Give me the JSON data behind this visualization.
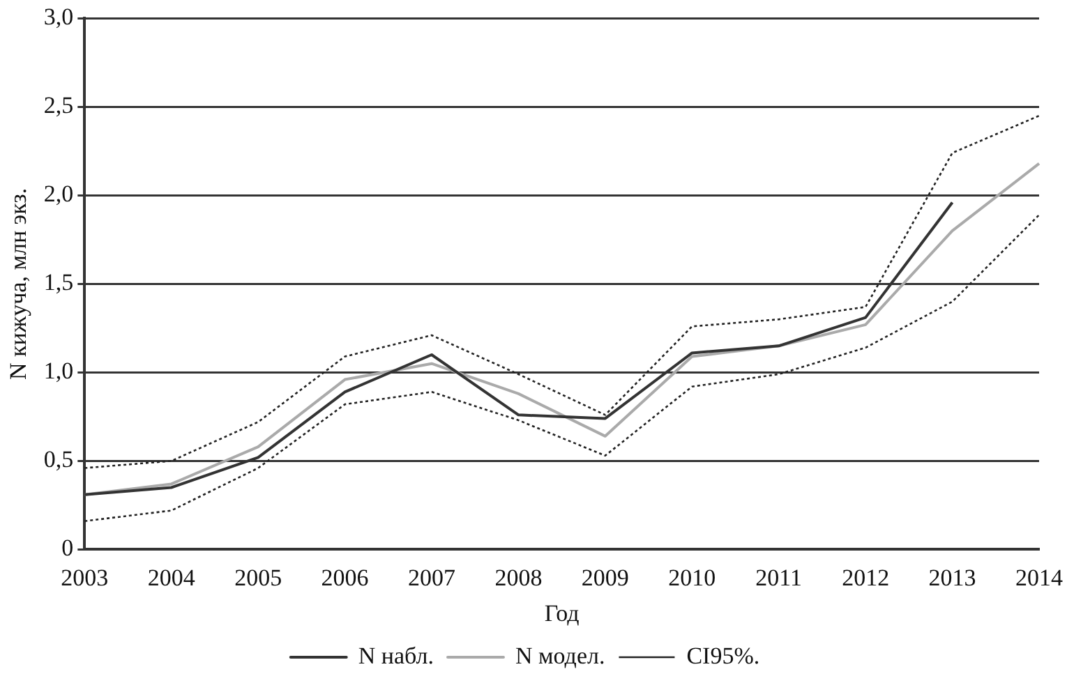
{
  "chart_data": {
    "type": "line",
    "xlabel": "Год",
    "ylabel": "N кижуча, млн экз.",
    "categories": [
      "2003",
      "2004",
      "2005",
      "2006",
      "2007",
      "2008",
      "2009",
      "2010",
      "2011",
      "2012",
      "2013",
      "2014"
    ],
    "series": [
      {
        "name": "N набл.",
        "color": "#333333",
        "line_style": "solid",
        "values": [
          0.31,
          0.35,
          0.52,
          0.89,
          1.1,
          0.76,
          0.74,
          1.11,
          1.15,
          1.31,
          1.96,
          null
        ]
      },
      {
        "name": "N модел.",
        "color": "#aaaaaa",
        "line_style": "solid",
        "values": [
          0.31,
          0.37,
          0.58,
          0.96,
          1.05,
          0.88,
          0.64,
          1.09,
          1.15,
          1.27,
          1.8,
          2.18
        ]
      },
      {
        "name": "CI95%.",
        "color": "#222222",
        "line_style": "dotted",
        "values": [
          0.46,
          0.5,
          0.72,
          1.09,
          1.21,
          0.99,
          0.76,
          1.26,
          1.3,
          1.37,
          2.24,
          2.45
        ]
      },
      {
        "color": "#222222",
        "line_style": "dotted",
        "values": [
          0.16,
          0.22,
          0.46,
          0.82,
          0.89,
          0.73,
          0.53,
          0.92,
          0.99,
          1.14,
          1.4,
          1.89
        ]
      }
    ],
    "ylim": [
      0,
      3
    ],
    "yticks": [
      0,
      {
        "value": 0.5,
        "label": "0,5"
      },
      {
        "value": 1,
        "label": "1,0"
      },
      {
        "value": 1.5,
        "label": "1,5"
      },
      {
        "value": 2,
        "label": "2,0"
      },
      {
        "value": 2.5,
        "label": "2,5"
      },
      {
        "value": 3,
        "label": "3,0"
      }
    ],
    "grid": "y",
    "legend": "bottom",
    "marker": "none"
  }
}
